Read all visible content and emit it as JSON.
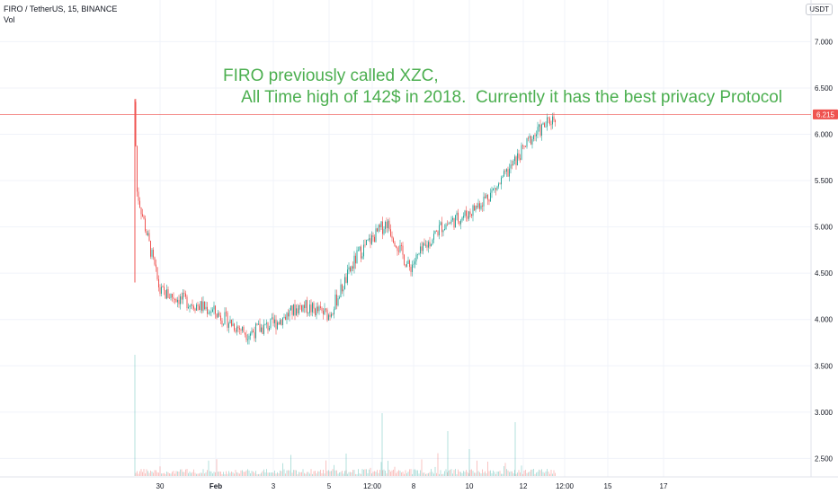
{
  "header": {
    "symbol_line": "FIRO / TetherUS, 15, BINANCE",
    "volume_label": "Vol"
  },
  "currency": "USDT",
  "annotation": {
    "line1": "FIRO previously called XZC,",
    "line2": "    All Time high of 142$ in 2018.  Currently it has the best privacy Protocol"
  },
  "colors": {
    "up": "#26a69a",
    "down": "#ef5350",
    "annotation": "#4caf50",
    "grid": "#f0f3fa",
    "price_line": "#ef5350"
  },
  "chart_data": {
    "type": "candlestick",
    "title": "FIRO / TetherUS, 15, BINANCE",
    "xlabel": "",
    "ylabel": "",
    "ylim": [
      2.3,
      7.45
    ],
    "y_ticks": [
      "7.000",
      "6.500",
      "6.000",
      "5.500",
      "5.000",
      "4.500",
      "4.000",
      "3.500",
      "3.000",
      "2.500"
    ],
    "x_ticks": [
      "30",
      "Feb",
      "3",
      "5",
      "12:00",
      "8",
      "10",
      "12",
      "12:00",
      "15",
      "17"
    ],
    "last_price": "6.215",
    "grid": true,
    "price_path_approx": [
      {
        "x": "29 Jan",
        "y": 6.35
      },
      {
        "x": "29 Jan",
        "y": 5.4
      },
      {
        "x": "30 Jan",
        "y": 4.3
      },
      {
        "x": "1 Feb",
        "y": 4.1
      },
      {
        "x": "2 Feb",
        "y": 3.85
      },
      {
        "x": "3 Feb",
        "y": 3.95
      },
      {
        "x": "4 Feb",
        "y": 4.15
      },
      {
        "x": "5 Feb",
        "y": 4.05
      },
      {
        "x": "6 Feb",
        "y": 4.7
      },
      {
        "x": "7 Feb",
        "y": 5.05
      },
      {
        "x": "8 Feb",
        "y": 4.55
      },
      {
        "x": "9 Feb",
        "y": 5.0
      },
      {
        "x": "10 Feb",
        "y": 5.15
      },
      {
        "x": "11 Feb",
        "y": 5.45
      },
      {
        "x": "12 Feb",
        "y": 5.95
      },
      {
        "x": "13 Feb",
        "y": 6.2
      }
    ]
  }
}
